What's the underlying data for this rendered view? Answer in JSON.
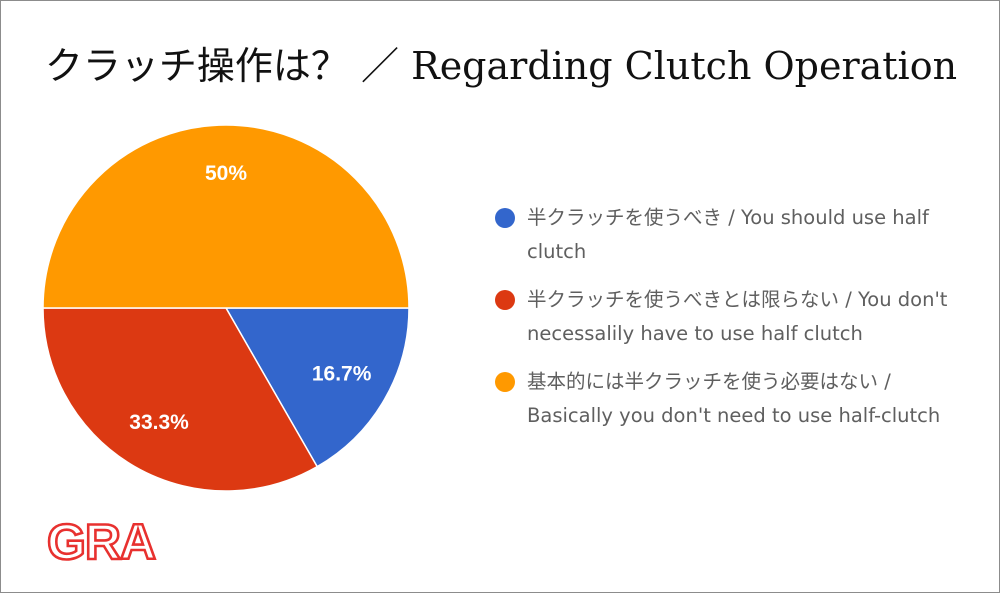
{
  "title": "クラッチ操作は？ ／ Regarding Clutch Operation",
  "logo_text": "GRA",
  "chart_data": {
    "type": "pie",
    "title": "クラッチ操作は？ ／ Regarding Clutch Operation",
    "legend_position": "right",
    "slices": [
      {
        "label": "半クラッチを使うべき / You should use half clutch",
        "value": 16.7,
        "display": "16.7%",
        "color": "#3366cc"
      },
      {
        "label": "半クラッチを使うべきとは限らない / You don't necessalily have to use half clutch",
        "value": 33.3,
        "display": "33.3%",
        "color": "#dc3912"
      },
      {
        "label": "基本的には半クラッチを使う必要はない / Basically you don't need to use half-clutch",
        "value": 50,
        "display": "50%",
        "color": "#ff9900"
      }
    ]
  }
}
